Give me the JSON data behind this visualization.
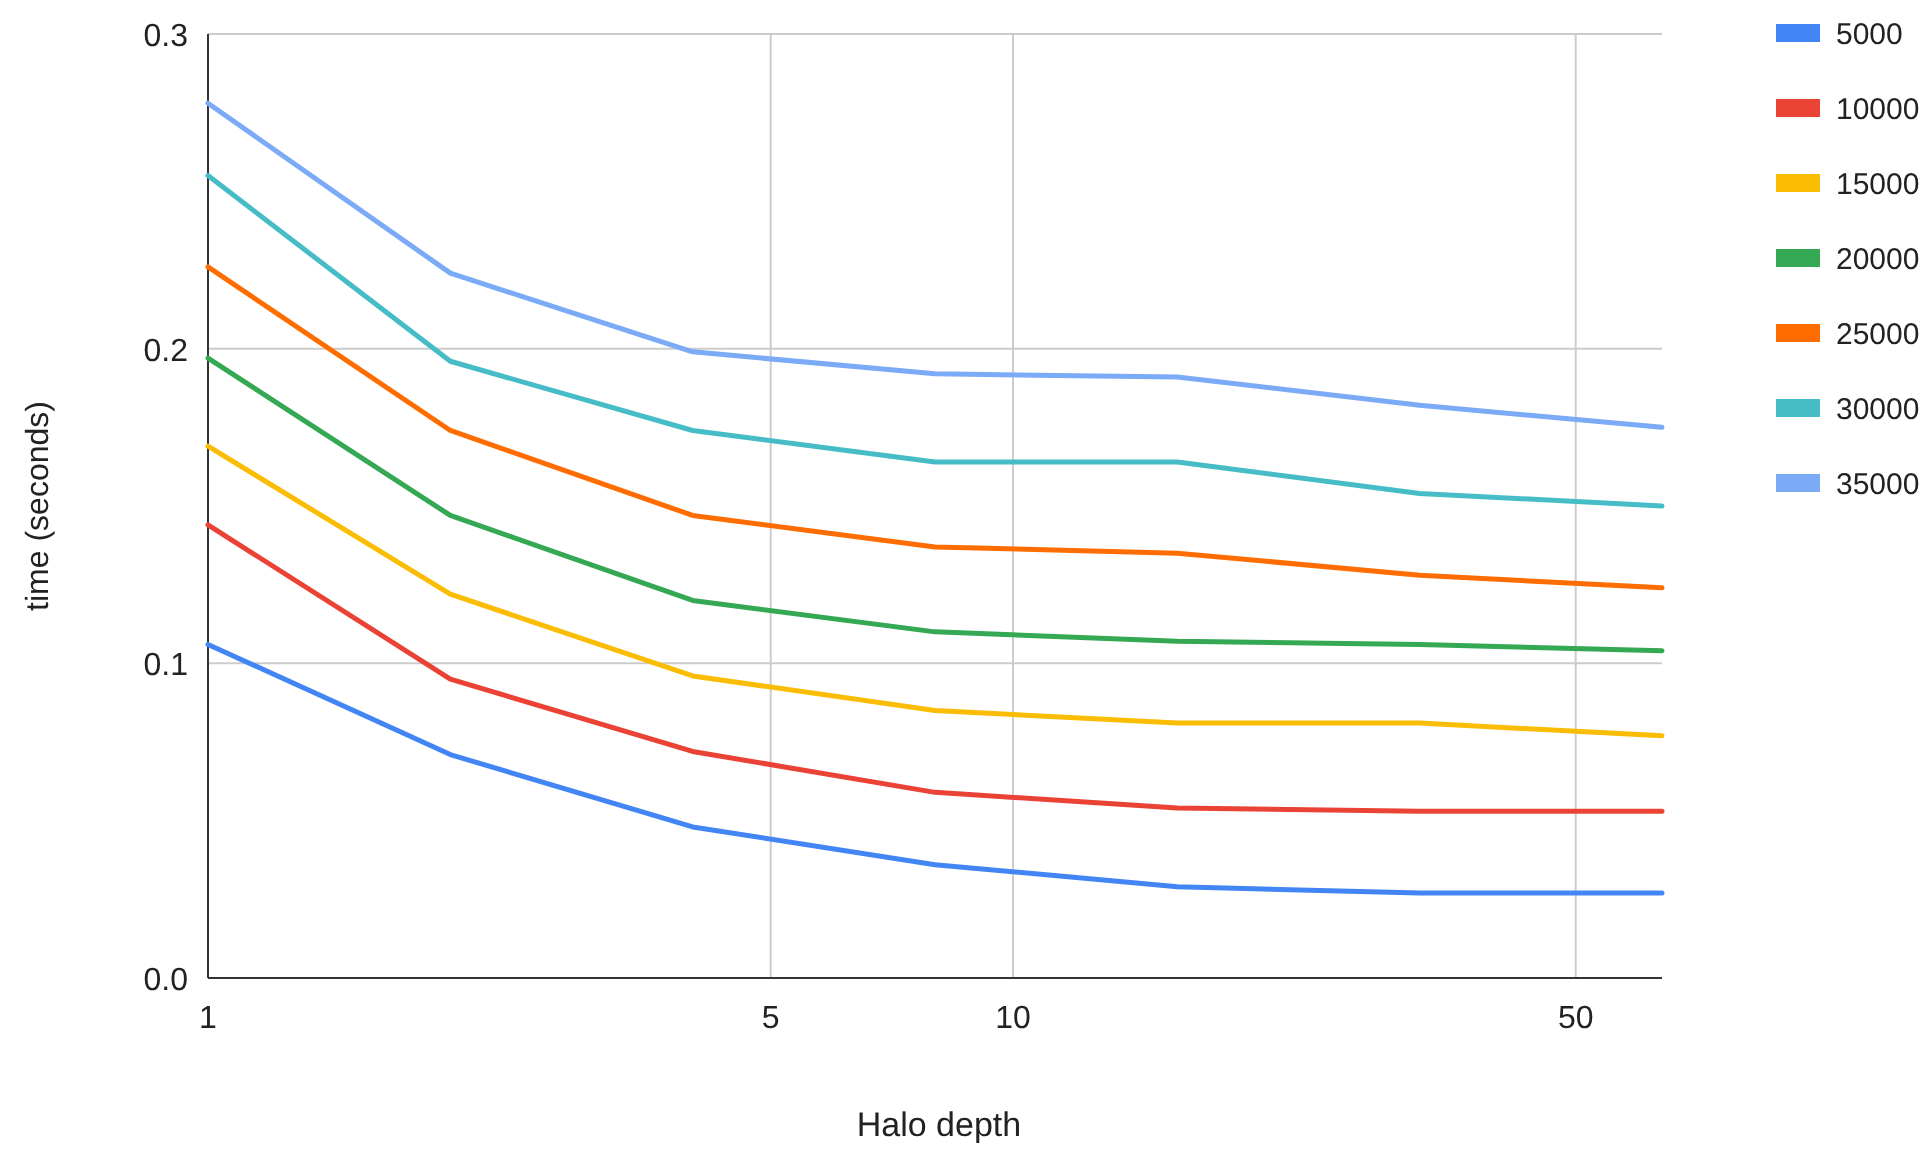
{
  "chart_data": {
    "type": "line",
    "xlabel": "Halo depth",
    "ylabel": "time (seconds)",
    "log": "x",
    "grid": true,
    "legend": "right",
    "x": [
      1,
      2,
      4,
      8,
      16,
      32,
      64
    ],
    "xlim": [
      1,
      64
    ],
    "xticks": [
      1,
      5,
      10,
      50
    ],
    "ylim": [
      0,
      0.3
    ],
    "yticks": [
      {
        "value": 0,
        "label": "0.0"
      },
      0.1,
      0.2,
      0.3
    ],
    "series": [
      {
        "name": "5000",
        "color": "#4285f4",
        "values": [
          0.106,
          0.071,
          0.048,
          0.036,
          0.029,
          0.027,
          0.027
        ]
      },
      {
        "name": "10000",
        "color": "#ea4335",
        "values": [
          0.144,
          0.095,
          0.072,
          0.059,
          0.054,
          0.053,
          0.053
        ]
      },
      {
        "name": "15000",
        "color": "#fbbc04",
        "values": [
          0.169,
          0.122,
          0.096,
          0.085,
          0.081,
          0.081,
          0.077
        ]
      },
      {
        "name": "20000",
        "color": "#34a853",
        "values": [
          0.197,
          0.147,
          0.12,
          0.11,
          0.107,
          0.106,
          0.104
        ]
      },
      {
        "name": "25000",
        "color": "#ff6d01",
        "values": [
          0.226,
          0.174,
          0.147,
          0.137,
          0.135,
          0.128,
          0.124
        ]
      },
      {
        "name": "30000",
        "color": "#46bdc6",
        "values": [
          0.255,
          0.196,
          0.174,
          0.164,
          0.164,
          0.154,
          0.15
        ]
      },
      {
        "name": "35000",
        "color": "#7baaf7",
        "values": [
          0.278,
          0.224,
          0.199,
          0.192,
          0.191,
          0.182,
          0.175
        ]
      }
    ]
  }
}
